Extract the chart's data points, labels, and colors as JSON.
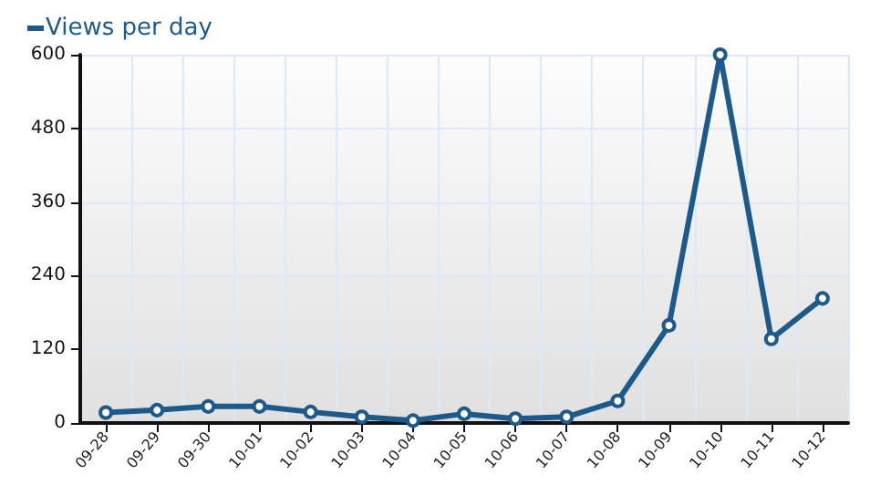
{
  "chart_data": {
    "type": "line",
    "categories": [
      "09-28",
      "09-29",
      "09-30",
      "10-01",
      "10-02",
      "10-03",
      "10-04",
      "10-05",
      "10-06",
      "10-07",
      "10-08",
      "10-09",
      "10-10",
      "10-11",
      "10-12"
    ],
    "series": [
      {
        "name": "Views per day",
        "color": "#1c5a8c",
        "values": [
          17,
          21,
          27,
          27,
          18,
          10,
          4,
          15,
          7,
          10,
          36,
          159,
          600,
          137,
          203
        ]
      }
    ],
    "ylim": [
      0,
      600
    ],
    "yticks": [
      0,
      120,
      240,
      360,
      480,
      600
    ],
    "grid": true,
    "legend": "top left",
    "marker": "circle",
    "line_style": "solid"
  }
}
